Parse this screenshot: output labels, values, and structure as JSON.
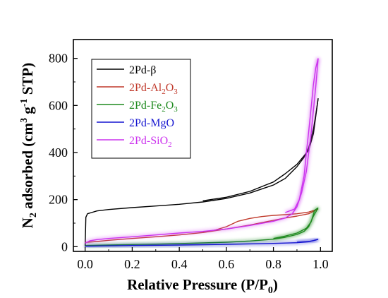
{
  "chart_data": {
    "type": "line",
    "xlabel": {
      "main": "Relative Pressure (P/P",
      "sub": "0",
      "tail": ")"
    },
    "ylabel": {
      "n": "N",
      "n_sub": "2",
      "mid": " adsorbed (cm",
      "sup1": "3",
      "mid2": " g",
      "sup2": "-1",
      "tail": " STP)"
    },
    "xlim": [
      -0.05,
      1.05
    ],
    "ylim": [
      -20,
      880
    ],
    "xticks": [
      "0.0",
      "0.2",
      "0.4",
      "0.6",
      "0.8",
      "1.0"
    ],
    "xtick_values": [
      0.0,
      0.2,
      0.4,
      0.6,
      0.8,
      1.0
    ],
    "yticks": [
      "0",
      "200",
      "400",
      "600",
      "800"
    ],
    "ytick_values": [
      0,
      200,
      400,
      600,
      800
    ],
    "grid": false,
    "legend_position": "top-left",
    "series": [
      {
        "name": "2Pd-β",
        "legend": {
          "main": "2Pd-β",
          "sub": "",
          "tail": ""
        },
        "color": "#000000",
        "glow": false,
        "adsorption": [
          [
            0.0,
            0
          ],
          [
            0.003,
            125
          ],
          [
            0.01,
            140
          ],
          [
            0.05,
            152
          ],
          [
            0.1,
            158
          ],
          [
            0.2,
            166
          ],
          [
            0.3,
            173
          ],
          [
            0.4,
            180
          ],
          [
            0.5,
            190
          ],
          [
            0.6,
            205
          ],
          [
            0.7,
            228
          ],
          [
            0.8,
            262
          ],
          [
            0.85,
            290
          ],
          [
            0.9,
            340
          ],
          [
            0.93,
            380
          ],
          [
            0.95,
            420
          ],
          [
            0.97,
            500
          ],
          [
            0.98,
            560
          ],
          [
            0.99,
            630
          ]
        ],
        "desorption": [
          [
            0.99,
            630
          ],
          [
            0.97,
            480
          ],
          [
            0.95,
            410
          ],
          [
            0.9,
            350
          ],
          [
            0.85,
            310
          ],
          [
            0.8,
            275
          ],
          [
            0.7,
            235
          ],
          [
            0.6,
            210
          ],
          [
            0.5,
            195
          ]
        ]
      },
      {
        "name": "2Pd-Al2O3",
        "legend": {
          "main": "2Pd-Al",
          "sub": "2",
          "tail": "O",
          "sub2": "3"
        },
        "color": "#c0392b",
        "glow": false,
        "adsorption": [
          [
            0.0,
            18
          ],
          [
            0.05,
            22
          ],
          [
            0.1,
            27
          ],
          [
            0.2,
            35
          ],
          [
            0.3,
            42
          ],
          [
            0.4,
            50
          ],
          [
            0.5,
            60
          ],
          [
            0.6,
            75
          ],
          [
            0.7,
            92
          ],
          [
            0.8,
            112
          ],
          [
            0.85,
            122
          ],
          [
            0.9,
            130
          ],
          [
            0.95,
            140
          ],
          [
            0.98,
            155
          ],
          [
            0.99,
            160
          ]
        ],
        "desorption": [
          [
            0.99,
            160
          ],
          [
            0.95,
            147
          ],
          [
            0.9,
            140
          ],
          [
            0.85,
            136
          ],
          [
            0.8,
            133
          ],
          [
            0.75,
            128
          ],
          [
            0.7,
            120
          ],
          [
            0.65,
            108
          ],
          [
            0.6,
            85
          ],
          [
            0.55,
            70
          ],
          [
            0.5,
            62
          ]
        ]
      },
      {
        "name": "2Pd-Fe2O3",
        "legend": {
          "main": "2Pd-Fe",
          "sub": "2",
          "tail": "O",
          "sub2": "3"
        },
        "color": "#1e8a1e",
        "glow": true,
        "adsorption": [
          [
            0.0,
            5
          ],
          [
            0.1,
            7
          ],
          [
            0.2,
            9
          ],
          [
            0.3,
            11
          ],
          [
            0.4,
            13
          ],
          [
            0.5,
            16
          ],
          [
            0.6,
            19
          ],
          [
            0.7,
            24
          ],
          [
            0.8,
            32
          ],
          [
            0.85,
            40
          ],
          [
            0.9,
            52
          ],
          [
            0.93,
            65
          ],
          [
            0.95,
            85
          ],
          [
            0.97,
            130
          ],
          [
            0.99,
            165
          ]
        ],
        "desorption": [
          [
            0.99,
            165
          ],
          [
            0.975,
            155
          ],
          [
            0.96,
            105
          ],
          [
            0.94,
            78
          ],
          [
            0.9,
            58
          ],
          [
            0.85,
            45
          ],
          [
            0.8,
            35
          ]
        ]
      },
      {
        "name": "2Pd-MgO",
        "legend": {
          "main": "2Pd-MgO",
          "sub": "",
          "tail": ""
        },
        "color": "#1515d0",
        "glow": true,
        "adsorption": [
          [
            0.0,
            2
          ],
          [
            0.2,
            5
          ],
          [
            0.4,
            7
          ],
          [
            0.6,
            10
          ],
          [
            0.8,
            14
          ],
          [
            0.9,
            17
          ],
          [
            0.95,
            21
          ],
          [
            0.98,
            28
          ],
          [
            0.99,
            32
          ]
        ],
        "desorption": [
          [
            0.99,
            32
          ],
          [
            0.97,
            26
          ],
          [
            0.95,
            22
          ],
          [
            0.9,
            19
          ]
        ]
      },
      {
        "name": "2Pd-SiO2",
        "legend": {
          "main": "2Pd-SiO",
          "sub": "2",
          "tail": ""
        },
        "color": "#cc33ee",
        "glow": true,
        "adsorption": [
          [
            0.0,
            15
          ],
          [
            0.02,
            25
          ],
          [
            0.05,
            30
          ],
          [
            0.1,
            35
          ],
          [
            0.2,
            42
          ],
          [
            0.3,
            50
          ],
          [
            0.4,
            58
          ],
          [
            0.5,
            65
          ],
          [
            0.6,
            75
          ],
          [
            0.7,
            90
          ],
          [
            0.8,
            108
          ],
          [
            0.85,
            122
          ],
          [
            0.88,
            140
          ],
          [
            0.9,
            170
          ],
          [
            0.92,
            230
          ],
          [
            0.94,
            320
          ],
          [
            0.96,
            480
          ],
          [
            0.98,
            680
          ],
          [
            0.99,
            800
          ]
        ],
        "desorption": [
          [
            0.99,
            800
          ],
          [
            0.98,
            760
          ],
          [
            0.97,
            690
          ],
          [
            0.96,
            590
          ],
          [
            0.95,
            490
          ],
          [
            0.94,
            400
          ],
          [
            0.93,
            300
          ],
          [
            0.91,
            200
          ],
          [
            0.89,
            160
          ],
          [
            0.85,
            145
          ]
        ]
      }
    ]
  }
}
